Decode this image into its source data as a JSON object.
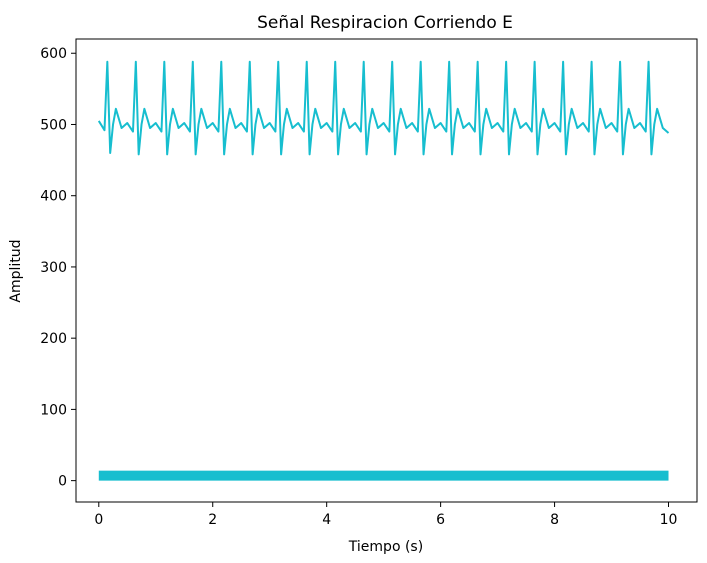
{
  "chart_data": {
    "type": "line",
    "title": "Señal Respiracion Corriendo E",
    "xlabel": "Tiempo (s)",
    "ylabel": "Amplitud",
    "xlim": [
      -0.4,
      10.5
    ],
    "ylim": [
      -30,
      620
    ],
    "xticks": [
      0,
      2,
      4,
      6,
      8,
      10
    ],
    "yticks": [
      0,
      100,
      200,
      300,
      400,
      500,
      600
    ],
    "xtick_labels": [
      "0",
      "2",
      "4",
      "6",
      "8",
      "10"
    ],
    "ytick_labels": [
      "0",
      "100",
      "200",
      "300",
      "400",
      "500",
      "600"
    ],
    "grid": false,
    "legend": "none",
    "color": "#17becf",
    "series": [
      {
        "x": [
          0,
          0.1,
          0.15,
          0.2,
          0.25,
          0.3,
          0.4,
          0.5,
          0.6,
          0.65,
          0.7,
          0.75,
          0.8,
          0.9,
          1.0,
          1.1,
          1.15,
          1.2,
          1.25,
          1.3,
          1.4,
          1.5,
          1.6,
          1.65,
          1.7,
          1.75,
          1.8,
          1.9,
          2.0,
          2.1,
          2.15,
          2.2,
          2.25,
          2.3,
          2.4,
          2.5,
          2.6,
          2.65,
          2.7,
          2.75,
          2.8,
          2.9,
          3.0,
          3.1,
          3.15,
          3.2,
          3.25,
          3.3,
          3.4,
          3.5,
          3.6,
          3.65,
          3.7,
          3.75,
          3.8,
          3.9,
          4.0,
          4.1,
          4.15,
          4.2,
          4.25,
          4.3,
          4.4,
          4.5,
          4.6,
          4.65,
          4.7,
          4.75,
          4.8,
          4.9,
          5.0,
          5.1,
          5.15,
          5.2,
          5.25,
          5.3,
          5.4,
          5.5,
          5.6,
          5.65,
          5.7,
          5.75,
          5.8,
          5.9,
          6.0,
          6.1,
          6.15,
          6.2,
          6.25,
          6.3,
          6.4,
          6.5,
          6.6,
          6.65,
          6.7,
          6.75,
          6.8,
          6.9,
          7.0,
          7.1,
          7.15,
          7.2,
          7.25,
          7.3,
          7.4,
          7.5,
          7.6,
          7.65,
          7.7,
          7.75,
          7.8,
          7.9,
          8.0,
          8.1,
          8.15,
          8.2,
          8.25,
          8.3,
          8.4,
          8.5,
          8.6,
          8.65,
          8.7,
          8.75,
          8.8,
          8.9,
          9.0,
          9.1,
          9.15,
          9.2,
          9.25,
          9.3,
          9.4,
          9.5,
          9.6,
          9.65,
          9.7,
          9.75,
          9.8,
          9.9,
          10.0
        ],
        "values": [
          505,
          492,
          588,
          460,
          500,
          522,
          495,
          502,
          490,
          588,
          458,
          500,
          522,
          495,
          502,
          490,
          588,
          458,
          500,
          522,
          495,
          502,
          490,
          588,
          458,
          500,
          522,
          495,
          502,
          490,
          588,
          458,
          500,
          522,
          495,
          502,
          490,
          588,
          458,
          500,
          522,
          495,
          502,
          490,
          588,
          458,
          500,
          522,
          495,
          502,
          490,
          588,
          458,
          500,
          522,
          495,
          502,
          490,
          588,
          458,
          500,
          522,
          495,
          502,
          490,
          588,
          458,
          500,
          522,
          495,
          502,
          490,
          588,
          458,
          500,
          522,
          495,
          502,
          490,
          588,
          458,
          500,
          522,
          495,
          502,
          490,
          588,
          458,
          500,
          522,
          495,
          502,
          490,
          588,
          458,
          500,
          522,
          495,
          502,
          490,
          588,
          458,
          500,
          522,
          495,
          502,
          490,
          588,
          458,
          500,
          522,
          495,
          502,
          490,
          588,
          458,
          500,
          522,
          495,
          502,
          490,
          588,
          458,
          500,
          522,
          495,
          502,
          490,
          588,
          458,
          500,
          522,
          495,
          502,
          490,
          588,
          458,
          500,
          522,
          495,
          488
        ]
      },
      {
        "band": true,
        "x_start": 0,
        "x_end": 10,
        "low": 0,
        "high": 14
      }
    ]
  }
}
